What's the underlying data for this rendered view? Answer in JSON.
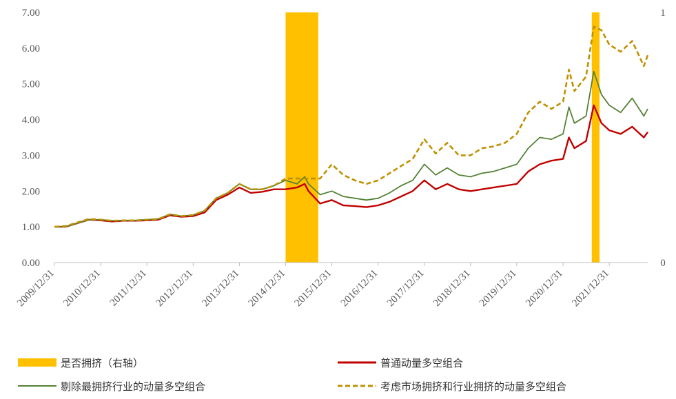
{
  "chart_data": {
    "type": "line",
    "left_axis": {
      "ylim": [
        0,
        7
      ],
      "ticks": [
        "0.00",
        "1.00",
        "2.00",
        "3.00",
        "4.00",
        "5.00",
        "6.00",
        "7.00"
      ]
    },
    "right_axis": {
      "ylim": [
        0,
        1
      ],
      "ticks": [
        "0",
        "1"
      ]
    },
    "x_axis": {
      "range": [
        "2009/12/31",
        "2022/10/31"
      ],
      "tick_labels": [
        "2009/12/31",
        "2010/12/31",
        "2011/12/31",
        "2012/12/31",
        "2013/12/31",
        "2014/12/31",
        "2015/12/31",
        "2016/12/31",
        "2017/12/31",
        "2018/12/31",
        "2019/12/31",
        "2020/12/31",
        "2021/12/31"
      ]
    },
    "grid": false,
    "legend_position": "bottom",
    "crowded_periods": [
      {
        "start": "2014/12/31",
        "end": "2015/09/15",
        "value": 1
      },
      {
        "start": "2021/08/15",
        "end": "2021/10/15",
        "value": 1
      }
    ],
    "series": [
      {
        "name": "是否拥挤（右轴）",
        "style": "bar",
        "axis": "right",
        "color": "#FFC000"
      },
      {
        "name": "普通动量多空组合",
        "style": "solid",
        "color": "#C00000",
        "points": [
          [
            "2009/12/31",
            1.0
          ],
          [
            "2010/03/31",
            1.0
          ],
          [
            "2010/06/30",
            1.1
          ],
          [
            "2010/09/30",
            1.2
          ],
          [
            "2010/12/31",
            1.18
          ],
          [
            "2011/03/31",
            1.15
          ],
          [
            "2011/06/30",
            1.17
          ],
          [
            "2011/09/30",
            1.17
          ],
          [
            "2011/12/31",
            1.18
          ],
          [
            "2012/03/31",
            1.2
          ],
          [
            "2012/06/30",
            1.32
          ],
          [
            "2012/09/30",
            1.28
          ],
          [
            "2012/12/31",
            1.3
          ],
          [
            "2013/03/31",
            1.4
          ],
          [
            "2013/06/30",
            1.75
          ],
          [
            "2013/09/30",
            1.9
          ],
          [
            "2013/12/31",
            2.1
          ],
          [
            "2014/03/31",
            1.95
          ],
          [
            "2014/06/30",
            1.98
          ],
          [
            "2014/09/30",
            2.05
          ],
          [
            "2014/12/31",
            2.05
          ],
          [
            "2015/03/31",
            2.1
          ],
          [
            "2015/05/31",
            2.2
          ],
          [
            "2015/06/30",
            2.0
          ],
          [
            "2015/09/30",
            1.65
          ],
          [
            "2015/12/31",
            1.75
          ],
          [
            "2016/03/31",
            1.6
          ],
          [
            "2016/06/30",
            1.58
          ],
          [
            "2016/09/30",
            1.55
          ],
          [
            "2016/12/31",
            1.6
          ],
          [
            "2017/03/31",
            1.7
          ],
          [
            "2017/06/30",
            1.85
          ],
          [
            "2017/09/30",
            2.0
          ],
          [
            "2017/12/31",
            2.3
          ],
          [
            "2018/03/31",
            2.05
          ],
          [
            "2018/06/30",
            2.2
          ],
          [
            "2018/09/30",
            2.05
          ],
          [
            "2018/12/31",
            2.0
          ],
          [
            "2019/03/31",
            2.05
          ],
          [
            "2019/06/30",
            2.1
          ],
          [
            "2019/09/30",
            2.15
          ],
          [
            "2019/12/31",
            2.2
          ],
          [
            "2020/03/31",
            2.55
          ],
          [
            "2020/06/30",
            2.75
          ],
          [
            "2020/09/30",
            2.85
          ],
          [
            "2020/12/31",
            2.9
          ],
          [
            "2021/02/15",
            3.5
          ],
          [
            "2021/03/31",
            3.2
          ],
          [
            "2021/06/30",
            3.4
          ],
          [
            "2021/08/31",
            4.4
          ],
          [
            "2021/10/31",
            3.9
          ],
          [
            "2021/12/31",
            3.7
          ],
          [
            "2022/03/31",
            3.6
          ],
          [
            "2022/06/30",
            3.8
          ],
          [
            "2022/09/30",
            3.5
          ],
          [
            "2022/10/31",
            3.65
          ]
        ]
      },
      {
        "name": "剔除最拥挤行业的动量多空组合",
        "style": "solid",
        "color": "#548235",
        "points": [
          [
            "2009/12/31",
            1.0
          ],
          [
            "2010/03/31",
            1.0
          ],
          [
            "2010/06/30",
            1.1
          ],
          [
            "2010/09/30",
            1.2
          ],
          [
            "2010/12/31",
            1.2
          ],
          [
            "2011/03/31",
            1.17
          ],
          [
            "2011/06/30",
            1.18
          ],
          [
            "2011/09/30",
            1.18
          ],
          [
            "2011/12/31",
            1.2
          ],
          [
            "2012/03/31",
            1.22
          ],
          [
            "2012/06/30",
            1.35
          ],
          [
            "2012/09/30",
            1.3
          ],
          [
            "2012/12/31",
            1.33
          ],
          [
            "2013/03/31",
            1.45
          ],
          [
            "2013/06/30",
            1.8
          ],
          [
            "2013/09/30",
            1.95
          ],
          [
            "2013/12/31",
            2.2
          ],
          [
            "2014/03/31",
            2.05
          ],
          [
            "2014/06/30",
            2.05
          ],
          [
            "2014/09/30",
            2.15
          ],
          [
            "2014/12/31",
            2.3
          ],
          [
            "2015/03/31",
            2.2
          ],
          [
            "2015/05/31",
            2.4
          ],
          [
            "2015/06/30",
            2.2
          ],
          [
            "2015/09/30",
            1.9
          ],
          [
            "2015/12/31",
            2.0
          ],
          [
            "2016/03/31",
            1.85
          ],
          [
            "2016/06/30",
            1.8
          ],
          [
            "2016/09/30",
            1.75
          ],
          [
            "2016/12/31",
            1.8
          ],
          [
            "2017/03/31",
            1.95
          ],
          [
            "2017/06/30",
            2.15
          ],
          [
            "2017/09/30",
            2.3
          ],
          [
            "2017/12/31",
            2.75
          ],
          [
            "2018/03/31",
            2.45
          ],
          [
            "2018/06/30",
            2.65
          ],
          [
            "2018/09/30",
            2.45
          ],
          [
            "2018/12/31",
            2.4
          ],
          [
            "2019/03/31",
            2.5
          ],
          [
            "2019/06/30",
            2.55
          ],
          [
            "2019/09/30",
            2.65
          ],
          [
            "2019/12/31",
            2.75
          ],
          [
            "2020/03/31",
            3.2
          ],
          [
            "2020/06/30",
            3.5
          ],
          [
            "2020/09/30",
            3.45
          ],
          [
            "2020/12/31",
            3.6
          ],
          [
            "2021/02/15",
            4.35
          ],
          [
            "2021/03/31",
            3.9
          ],
          [
            "2021/06/30",
            4.1
          ],
          [
            "2021/08/31",
            5.35
          ],
          [
            "2021/10/31",
            4.7
          ],
          [
            "2021/12/31",
            4.4
          ],
          [
            "2022/03/31",
            4.2
          ],
          [
            "2022/06/30",
            4.6
          ],
          [
            "2022/09/30",
            4.1
          ],
          [
            "2022/10/31",
            4.3
          ]
        ]
      },
      {
        "name": "考虑市场拥挤和行业拥挤的动量多空组合",
        "style": "dashed",
        "color": "#BF9000",
        "points": [
          [
            "2009/12/31",
            1.0
          ],
          [
            "2010/03/31",
            1.02
          ],
          [
            "2010/06/30",
            1.12
          ],
          [
            "2010/09/30",
            1.22
          ],
          [
            "2010/12/31",
            1.2
          ],
          [
            "2011/03/31",
            1.17
          ],
          [
            "2011/06/30",
            1.18
          ],
          [
            "2011/09/30",
            1.18
          ],
          [
            "2011/12/31",
            1.2
          ],
          [
            "2012/03/31",
            1.22
          ],
          [
            "2012/06/30",
            1.35
          ],
          [
            "2012/09/30",
            1.3
          ],
          [
            "2012/12/31",
            1.33
          ],
          [
            "2013/03/31",
            1.45
          ],
          [
            "2013/06/30",
            1.8
          ],
          [
            "2013/09/30",
            1.95
          ],
          [
            "2013/12/31",
            2.2
          ],
          [
            "2014/03/31",
            2.05
          ],
          [
            "2014/06/30",
            2.05
          ],
          [
            "2014/09/30",
            2.15
          ],
          [
            "2014/12/31",
            2.35
          ],
          [
            "2015/03/31",
            2.35
          ],
          [
            "2015/05/31",
            2.35
          ],
          [
            "2015/06/30",
            2.35
          ],
          [
            "2015/09/30",
            2.35
          ],
          [
            "2015/12/31",
            2.75
          ],
          [
            "2016/03/31",
            2.45
          ],
          [
            "2016/06/30",
            2.3
          ],
          [
            "2016/09/30",
            2.2
          ],
          [
            "2016/12/31",
            2.3
          ],
          [
            "2017/03/31",
            2.5
          ],
          [
            "2017/06/30",
            2.7
          ],
          [
            "2017/09/30",
            2.9
          ],
          [
            "2017/12/31",
            3.45
          ],
          [
            "2018/03/31",
            3.05
          ],
          [
            "2018/06/30",
            3.35
          ],
          [
            "2018/09/30",
            3.0
          ],
          [
            "2018/12/31",
            3.0
          ],
          [
            "2019/03/31",
            3.2
          ],
          [
            "2019/06/30",
            3.25
          ],
          [
            "2019/09/30",
            3.35
          ],
          [
            "2019/12/31",
            3.6
          ],
          [
            "2020/03/31",
            4.2
          ],
          [
            "2020/06/30",
            4.5
          ],
          [
            "2020/09/30",
            4.3
          ],
          [
            "2020/12/31",
            4.5
          ],
          [
            "2021/02/15",
            5.4
          ],
          [
            "2021/03/31",
            4.8
          ],
          [
            "2021/06/30",
            5.2
          ],
          [
            "2021/08/31",
            6.6
          ],
          [
            "2021/10/31",
            6.5
          ],
          [
            "2021/12/31",
            6.1
          ],
          [
            "2022/03/31",
            5.9
          ],
          [
            "2022/06/30",
            6.2
          ],
          [
            "2022/09/30",
            5.5
          ],
          [
            "2022/10/31",
            5.8
          ]
        ]
      }
    ]
  },
  "legend": [
    {
      "label": "是否拥挤（右轴）",
      "swatch": "bar",
      "color": "#FFC000"
    },
    {
      "label": "普通动量多空组合",
      "swatch": "solid",
      "color": "#C00000"
    },
    {
      "label": "剔除最拥挤行业的动量多空组合",
      "swatch": "solid",
      "color": "#548235"
    },
    {
      "label": "考虑市场拥挤和行业拥挤的动量多空组合",
      "swatch": "dashed",
      "color": "#BF9000"
    }
  ]
}
